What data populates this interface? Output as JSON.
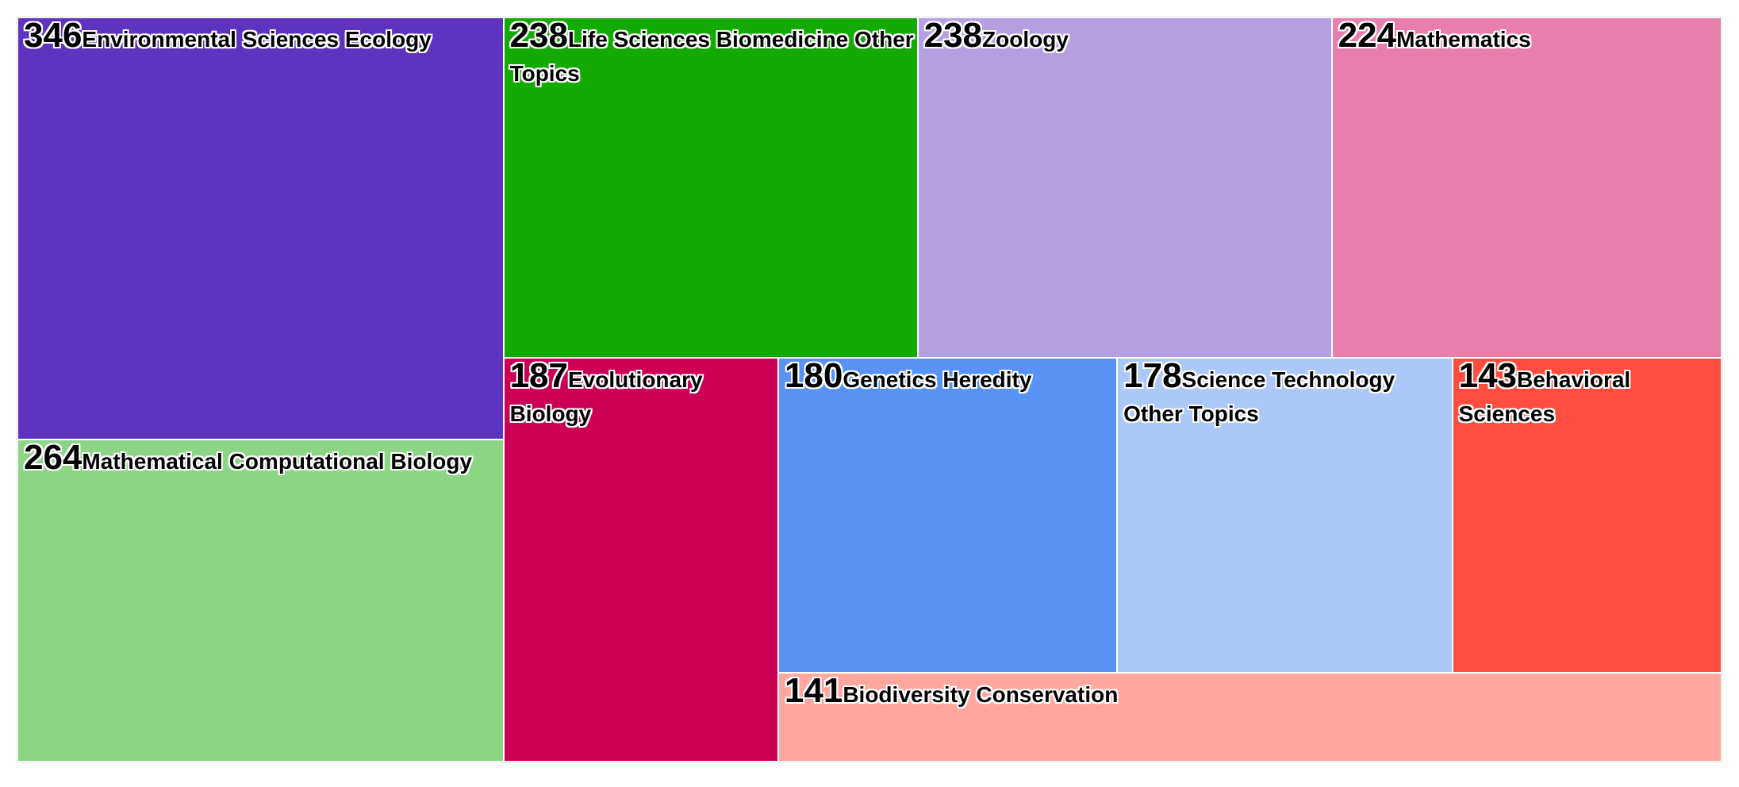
{
  "chart_data": {
    "type": "treemap",
    "categories": [
      "Environmental Sciences Ecology",
      "Mathematical Computational Biology",
      "Life Sciences Biomedicine Other Topics",
      "Zoology",
      "Mathematics",
      "Evolutionary Biology",
      "Genetics Heredity",
      "Science Technology Other Topics",
      "Behavioral Sciences",
      "Biodiversity Conservation"
    ],
    "values": [
      346,
      264,
      238,
      238,
      224,
      187,
      180,
      178,
      143,
      141
    ],
    "colors": [
      "#5e33bf",
      "#8bd585",
      "#14aa04",
      "#b49fe0",
      "#e77eab",
      "#cc0155",
      "#5892f5",
      "#abc8f9",
      "#ff4e3f",
      "#ffa79f"
    ]
  }
}
